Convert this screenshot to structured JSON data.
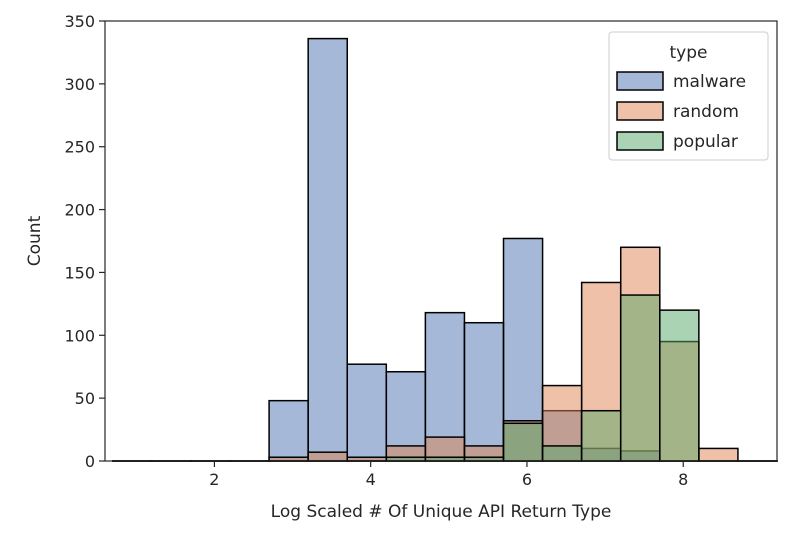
{
  "chart_data": {
    "type": "bar",
    "subtype": "histogram",
    "xlabel": "Log Scaled # Of Unique API Return Type",
    "ylabel": "Count",
    "xlim": [
      0.6,
      9.2
    ],
    "ylim": [
      0,
      350
    ],
    "xticks": [
      2,
      4,
      6,
      8
    ],
    "yticks": [
      0,
      50,
      100,
      150,
      200,
      250,
      300,
      350
    ],
    "bin_edges": [
      0.7,
      1.2,
      1.7,
      2.2,
      2.7,
      3.2,
      3.7,
      4.2,
      4.7,
      5.2,
      5.7,
      6.2,
      6.7,
      7.2,
      7.7,
      8.2,
      8.7,
      9.2
    ],
    "grid": false,
    "legend": {
      "title": "type",
      "position": "top-right"
    },
    "series": [
      {
        "name": "malware",
        "color": "#4c72b0",
        "values": [
          0,
          0,
          0,
          0,
          48,
          336,
          77,
          71,
          118,
          110,
          177,
          40,
          10,
          8,
          0,
          0,
          0
        ]
      },
      {
        "name": "random",
        "color": "#dd8452",
        "values": [
          0,
          0,
          0,
          0,
          3,
          7,
          3,
          12,
          19,
          12,
          32,
          60,
          142,
          170,
          95,
          10,
          0
        ]
      },
      {
        "name": "popular",
        "color": "#55a868",
        "values": [
          0,
          0,
          0,
          0,
          0,
          0,
          0,
          3,
          3,
          3,
          30,
          12,
          40,
          132,
          120,
          0,
          0
        ]
      }
    ]
  }
}
